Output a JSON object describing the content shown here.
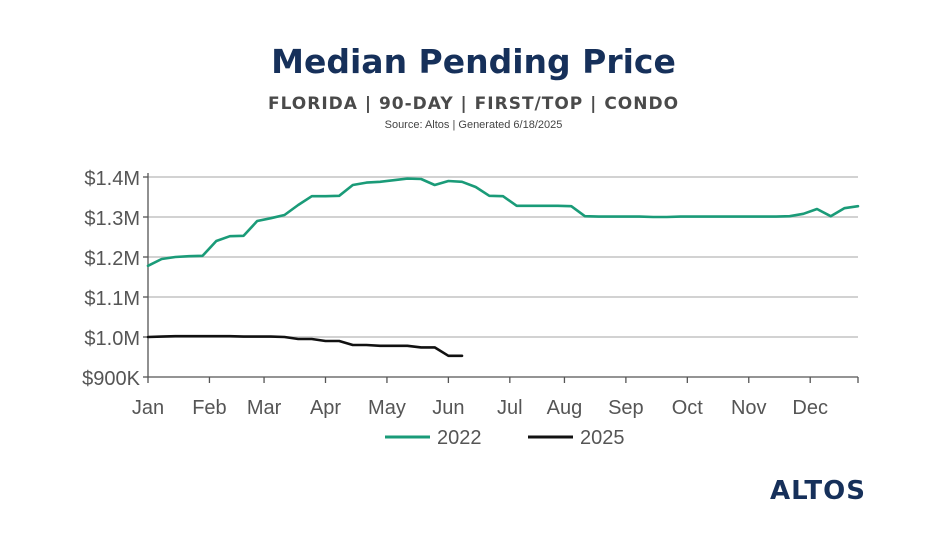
{
  "page": {
    "title": "Median Pending Price",
    "subtitle": "FLORIDA | 90-DAY | FIRST/TOP | CONDO",
    "source": "Source: Altos  | Generated 6/18/2025",
    "brand": "ALTOS"
  },
  "chart_data": {
    "type": "line",
    "title": "Median Pending Price",
    "xlabel": "",
    "ylabel": "",
    "ylim": [
      900000,
      1400000
    ],
    "xlim": [
      1,
      53
    ],
    "grid": true,
    "legend_position": "bottom-center",
    "month_labels": [
      {
        "label": "Jan",
        "week": 0
      },
      {
        "label": "Feb",
        "week": 4.5
      },
      {
        "label": "Mar",
        "week": 8.5
      },
      {
        "label": "Apr",
        "week": 13
      },
      {
        "label": "May",
        "week": 17.5
      },
      {
        "label": "Jun",
        "week": 22
      },
      {
        "label": "Jul",
        "week": 26.5
      },
      {
        "label": "Aug",
        "week": 30.5
      },
      {
        "label": "Sep",
        "week": 35
      },
      {
        "label": "Oct",
        "week": 39.5
      },
      {
        "label": "Nov",
        "week": 44
      },
      {
        "label": "Dec",
        "week": 48.5
      }
    ],
    "y_ticks": [
      {
        "label": "$900K",
        "value": 900000
      },
      {
        "label": "$1.0M",
        "value": 1000000
      },
      {
        "label": "$1.1M",
        "value": 1100000
      },
      {
        "label": "$1.2M",
        "value": 1200000
      },
      {
        "label": "$1.3M",
        "value": 1300000
      },
      {
        "label": "$1.4M",
        "value": 1400000
      }
    ],
    "series": [
      {
        "name": "2022",
        "color": "#1a9b78",
        "x": [
          1,
          2,
          3,
          4,
          5,
          6,
          7,
          8,
          9,
          10,
          11,
          12,
          13,
          14,
          15,
          16,
          17,
          18,
          19,
          20,
          21,
          22,
          23,
          24,
          25,
          26,
          27,
          28,
          29,
          30,
          31,
          32,
          33,
          34,
          35,
          36,
          37,
          38,
          39,
          40,
          41,
          42,
          43,
          44,
          45,
          46,
          47,
          48,
          49,
          50,
          51,
          52,
          53
        ],
        "values": [
          1178000,
          1195000,
          1200000,
          1202000,
          1203000,
          1240000,
          1252000,
          1253000,
          1290000,
          1297000,
          1305000,
          1330000,
          1352000,
          1352000,
          1353000,
          1380000,
          1386000,
          1388000,
          1392000,
          1396000,
          1395000,
          1380000,
          1390000,
          1388000,
          1375000,
          1353000,
          1352000,
          1328000,
          1328000,
          1328000,
          1328000,
          1327000,
          1302000,
          1301000,
          1301000,
          1301000,
          1301000,
          1300000,
          1300000,
          1301000,
          1301000,
          1301000,
          1301000,
          1301000,
          1301000,
          1301000,
          1301000,
          1302000,
          1308000,
          1320000,
          1302000,
          1322000,
          1327000
        ]
      },
      {
        "name": "2025",
        "color": "#111111",
        "x": [
          1,
          2,
          3,
          4,
          5,
          6,
          7,
          8,
          9,
          10,
          11,
          12,
          13,
          14,
          15,
          16,
          17,
          18,
          19,
          20,
          21,
          22,
          23,
          24
        ],
        "values": [
          1000000,
          1001000,
          1002000,
          1002000,
          1002000,
          1002000,
          1002000,
          1001000,
          1001000,
          1001000,
          1000000,
          995000,
          995000,
          990000,
          990000,
          980000,
          980000,
          978000,
          978000,
          978000,
          974000,
          974000,
          953000,
          953000
        ]
      }
    ]
  }
}
